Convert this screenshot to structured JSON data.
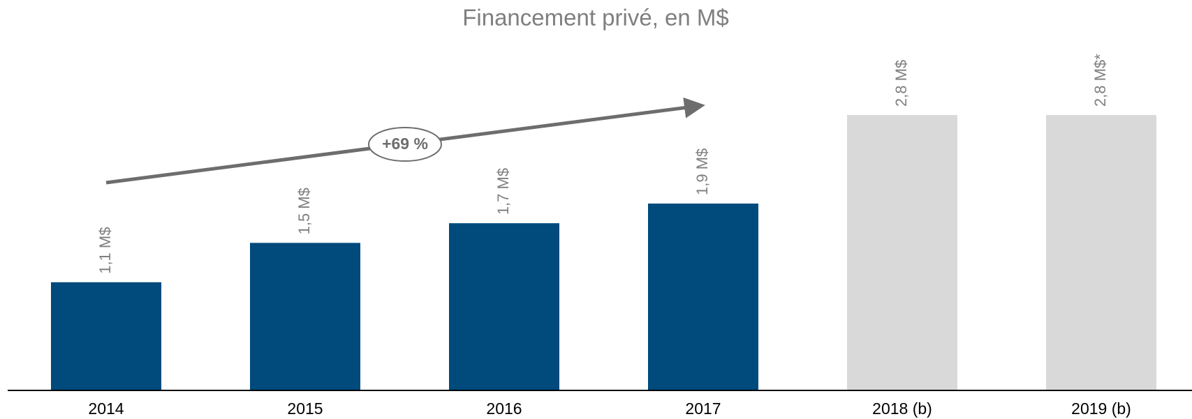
{
  "chart_data": {
    "type": "bar",
    "title": "Financement privé, en M$",
    "categories": [
      "2014",
      "2015",
      "2016",
      "2017",
      "2018 (b)",
      "2019 (b)"
    ],
    "values": [
      1.1,
      1.5,
      1.7,
      1.9,
      2.8,
      2.8
    ],
    "value_labels": [
      "1,1 M$",
      "1,5 M$",
      "1,7 M$",
      "1,9 M$",
      "2,8 M$",
      "2,8 M$*"
    ],
    "colors": [
      "#004a7c",
      "#004a7c",
      "#004a7c",
      "#004a7c",
      "#d9d9d9",
      "#d9d9d9"
    ],
    "annotation": "+69 %"
  }
}
